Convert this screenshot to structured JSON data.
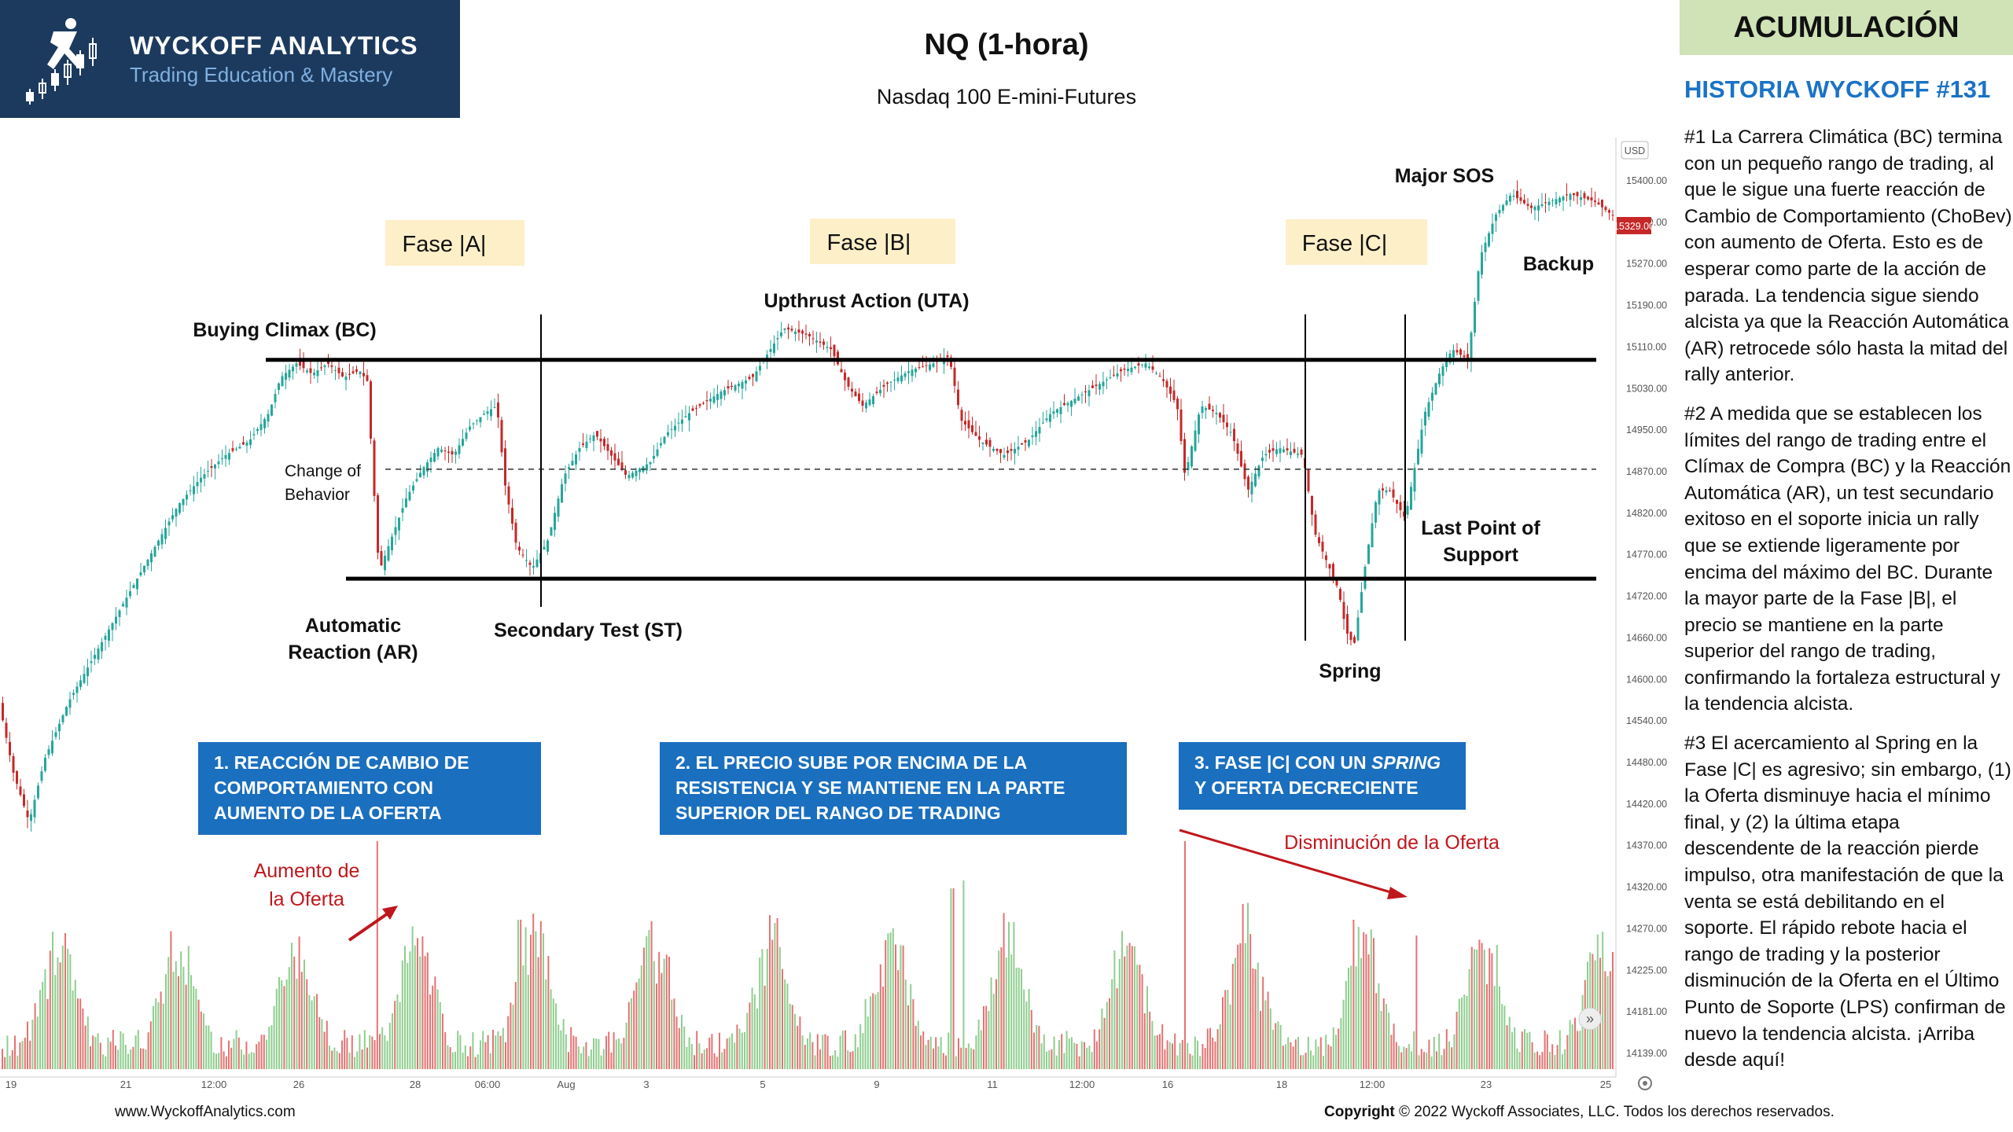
{
  "header": {
    "brand_name": "WYCKOFF ANALYTICS",
    "brand_tagline": "Trading Education & Mastery",
    "chart_title": "NQ (1-hora)",
    "chart_subtitle": "Nasdaq 100 E-mini-Futures",
    "badge": "ACUMULACIÓN"
  },
  "story": {
    "title": "HISTORIA WYCKOFF #131",
    "p1": "#1 La Carrera Climática (BC) termina con un pequeño rango de trading, al que le sigue una fuerte reacción de Cambio de Comportamiento (ChoBev) con aumento de Oferta. Esto es de esperar como parte de la acción de parada. La tendencia sigue siendo alcista ya que la Reacción Automática (AR) retrocede sólo hasta la mitad del rally anterior.",
    "p2": "#2 A medida que se establecen los límites del rango de trading entre el Clímax de Compra (BC) y la Reacción Automática (AR), un test secundario exitoso en el soporte inicia un rally que se extiende ligeramente por encima del máximo del BC. Durante la mayor parte de la Fase |B|, el precio se mantiene en la parte superior del rango de trading, confirmando la fortaleza estructural y la tendencia alcista.",
    "p3": "#3 El acercamiento al Spring en la Fase |C| es agresivo; sin embargo, (1) la Oferta disminuye hacia el mínimo final, y (2) la última etapa descendente de la reacción pierde impulso, otra manifestación de que la venta se está debilitando en el soporte. El rápido rebote hacia el rango de trading y la posterior disminución de la Oferta en el Último Punto de Soporte (LPS) confirman de nuevo la tendencia alcista. ¡Arriba desde aquí!"
  },
  "annotations": {
    "phase_a": "Fase |A|",
    "phase_b": "Fase |B|",
    "phase_c": "Fase |C|",
    "bc": "Buying Climax (BC)",
    "uta": "Upthrust Action (UTA)",
    "major_sos": "Major SOS",
    "backup": "Backup",
    "choch_1": "Change of",
    "choch_2": "Behavior",
    "ar_1": "Automatic",
    "ar_2": "Reaction (AR)",
    "st": "Secondary Test (ST)",
    "lps_1": "Last Point of",
    "lps_2": "Support",
    "spring": "Spring",
    "box1": "1. REACCIÓN DE CAMBIO DE COMPORTAMIENTO CON AUMENTO DE LA OFERTA",
    "box2": "2. EL PRECIO SUBE POR ENCIMA DE LA RESISTENCIA Y SE MANTIENE EN LA PARTE SUPERIOR DEL RANGO DE TRADING",
    "box3_a": "3. FASE |C| CON UN ",
    "box3_b": "SPRING",
    "box3_c": " Y OFERTA DECRECIENTE",
    "supply_up_1": "Aumento de",
    "supply_up_2": "la Oferta",
    "supply_down": "Disminución de la Oferta"
  },
  "footer": {
    "website": "www.WyckoffAnalytics.com",
    "copyright_bold": "Copyright",
    "copyright_rest": " © 2022 Wyckoff Associates, LLC. Todos los derechos reservados."
  },
  "colors": {
    "up": "#26a69a",
    "down": "#c62828",
    "vol_up": "#8fce8f",
    "vol_down": "#e57373",
    "navy": "#1c3a5e",
    "blue_box": "#1a6fbf",
    "accent_red": "#c0171d"
  },
  "chart_data": {
    "type": "candlestick",
    "symbol": "NQ",
    "currency": "USD",
    "current_price": "15329.00",
    "ylim": [
      14120,
      15440
    ],
    "y_ticks": [
      "15400.00",
      "15350.00",
      "15270.00",
      "15190.00",
      "15110.00",
      "15030.00",
      "14950.00",
      "14870.00",
      "14820.00",
      "14770.00",
      "14720.00",
      "14660.00",
      "14600.00",
      "14540.00",
      "14480.00",
      "14420.00",
      "14370.00",
      "14320.00",
      "14270.00",
      "14225.00",
      "14181.00",
      "14139.00"
    ],
    "x_ticks": [
      "19",
      "21",
      "12:00",
      "26",
      "28",
      "06:00",
      "Aug",
      "3",
      "5",
      "9",
      "11",
      "12:00",
      "16",
      "18",
      "12:00",
      "23",
      "25"
    ],
    "resistance": 15125,
    "support": 14815,
    "midline": 14970,
    "price_path": [
      [
        0,
        14650
      ],
      [
        20,
        14540
      ],
      [
        40,
        14470
      ],
      [
        60,
        14560
      ],
      [
        90,
        14640
      ],
      [
        120,
        14700
      ],
      [
        150,
        14760
      ],
      [
        180,
        14820
      ],
      [
        200,
        14860
      ],
      [
        230,
        14920
      ],
      [
        260,
        14960
      ],
      [
        290,
        14990
      ],
      [
        320,
        15010
      ],
      [
        345,
        15050
      ],
      [
        360,
        15100
      ],
      [
        380,
        15120
      ],
      [
        400,
        15105
      ],
      [
        420,
        15120
      ],
      [
        440,
        15100
      ],
      [
        460,
        15110
      ],
      [
        470,
        15095
      ],
      [
        478,
        14950
      ],
      [
        485,
        14825
      ],
      [
        500,
        14870
      ],
      [
        520,
        14930
      ],
      [
        540,
        14970
      ],
      [
        560,
        15000
      ],
      [
        580,
        14990
      ],
      [
        600,
        15030
      ],
      [
        620,
        15050
      ],
      [
        635,
        15060
      ],
      [
        645,
        14950
      ],
      [
        660,
        14860
      ],
      [
        680,
        14830
      ],
      [
        700,
        14870
      ],
      [
        720,
        14960
      ],
      [
        740,
        15000
      ],
      [
        760,
        15020
      ],
      [
        780,
        14990
      ],
      [
        800,
        14960
      ],
      [
        830,
        14980
      ],
      [
        850,
        15020
      ],
      [
        880,
        15050
      ],
      [
        920,
        15080
      ],
      [
        960,
        15100
      ],
      [
        1000,
        15170
      ],
      [
        1030,
        15160
      ],
      [
        1060,
        15140
      ],
      [
        1080,
        15090
      ],
      [
        1100,
        15060
      ],
      [
        1130,
        15090
      ],
      [
        1160,
        15110
      ],
      [
        1190,
        15120
      ],
      [
        1210,
        15130
      ],
      [
        1225,
        15040
      ],
      [
        1250,
        15010
      ],
      [
        1280,
        14990
      ],
      [
        1310,
        15010
      ],
      [
        1340,
        15050
      ],
      [
        1370,
        15070
      ],
      [
        1400,
        15090
      ],
      [
        1430,
        15110
      ],
      [
        1460,
        15120
      ],
      [
        1480,
        15100
      ],
      [
        1500,
        15060
      ],
      [
        1510,
        14960
      ],
      [
        1530,
        15060
      ],
      [
        1550,
        15050
      ],
      [
        1570,
        15020
      ],
      [
        1590,
        14940
      ],
      [
        1610,
        14990
      ],
      [
        1630,
        15000
      ],
      [
        1660,
        14990
      ],
      [
        1675,
        14880
      ],
      [
        1690,
        14840
      ],
      [
        1705,
        14800
      ],
      [
        1715,
        14740
      ],
      [
        1725,
        14720
      ],
      [
        1740,
        14840
      ],
      [
        1755,
        14940
      ],
      [
        1770,
        14940
      ],
      [
        1790,
        14900
      ],
      [
        1800,
        14960
      ],
      [
        1815,
        15050
      ],
      [
        1835,
        15110
      ],
      [
        1850,
        15140
      ],
      [
        1870,
        15125
      ],
      [
        1885,
        15270
      ],
      [
        1905,
        15330
      ],
      [
        1925,
        15360
      ],
      [
        1950,
        15340
      ],
      [
        1975,
        15350
      ],
      [
        2000,
        15360
      ],
      [
        2030,
        15350
      ],
      [
        2055,
        15329
      ]
    ],
    "volume_note": "Volume bars along bottom; spikes near BC/ChoB and declining supply into Spring"
  }
}
